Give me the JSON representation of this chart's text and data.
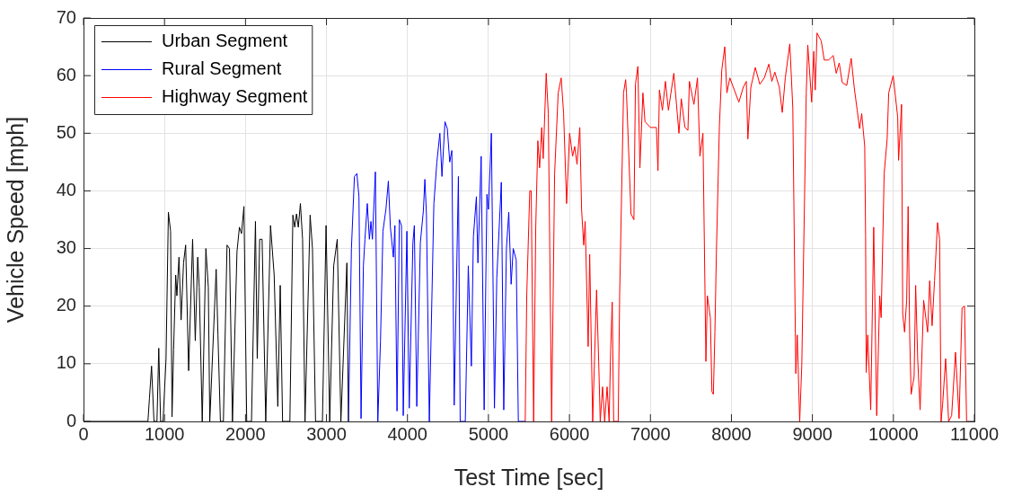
{
  "chart_data": {
    "type": "line",
    "xlabel": "Test Time [sec]",
    "ylabel": "Vehicle Speed [mph]",
    "xlim": [
      0,
      11000
    ],
    "xticks": [
      0,
      1000,
      2000,
      3000,
      4000,
      5000,
      6000,
      7000,
      8000,
      9000,
      10000,
      11000
    ],
    "ylim": [
      0,
      70
    ],
    "yticks": [
      0,
      10,
      20,
      30,
      40,
      50,
      60,
      70
    ],
    "grid": true,
    "legend": "top left",
    "marker": "none",
    "line_style": "solid",
    "series": [
      {
        "name": "Urban Segment",
        "color": "#000000",
        "x": [
          0,
          795,
          814,
          840,
          870,
          907,
          929,
          952,
          982,
          1019,
          1048,
          1075,
          1093,
          1112,
          1138,
          1153,
          1179,
          1205,
          1235,
          1261,
          1298,
          1347,
          1380,
          1410,
          1429,
          1466,
          1511,
          1541,
          1559,
          1638,
          1660,
          1690,
          1727,
          1772,
          1802,
          1839,
          1895,
          1925,
          1951,
          1981,
          2015,
          2074,
          2123,
          2145,
          2175,
          2205,
          2250,
          2309,
          2354,
          2399,
          2429,
          2458,
          2496,
          2548,
          2585,
          2608,
          2630,
          2652,
          2678,
          2705,
          2735,
          2798,
          2827,
          2865,
          2950,
          2995,
          3040,
          3089,
          3133,
          3178,
          3252,
          3271
        ],
        "values": [
          0,
          0,
          4,
          9.6,
          0,
          0,
          12.7,
          0,
          0,
          10.9,
          36.3,
          33,
          0.8,
          12.4,
          25.4,
          21.8,
          28.5,
          17.6,
          27.5,
          30.6,
          8.8,
          31.6,
          14,
          28.5,
          23.3,
          0,
          30,
          23.3,
          0,
          26.4,
          15,
          0,
          0,
          30.6,
          30,
          0,
          29.5,
          33.7,
          32.6,
          37.3,
          0,
          0,
          34.7,
          10.9,
          31.6,
          31.6,
          0,
          34,
          25.4,
          2.6,
          23.6,
          0,
          0,
          0,
          35.8,
          33.7,
          36,
          33.7,
          37.8,
          31.6,
          0,
          35.8,
          30,
          0,
          0,
          34,
          0,
          27,
          31.6,
          0,
          27.5,
          0
        ]
      },
      {
        "name": "Rural Segment",
        "color": "#0000ff",
        "x": [
          3271,
          3308,
          3345,
          3375,
          3401,
          3427,
          3456,
          3475,
          3504,
          3530,
          3549,
          3567,
          3604,
          3634,
          3667,
          3697,
          3734,
          3764,
          3789,
          3826,
          3845,
          3871,
          3900,
          3926,
          3948,
          3993,
          4022,
          4067,
          4085,
          4115,
          4159,
          4196,
          4215,
          4234,
          4270,
          4326,
          4363,
          4400,
          4426,
          4463,
          4492,
          4522,
          4548,
          4577,
          4629,
          4651,
          4714,
          4751,
          4789,
          4814,
          4851,
          4870,
          4910,
          4947,
          4981,
          5000,
          5036,
          5074,
          5103,
          5159,
          5189,
          5222,
          5251,
          5280,
          5306,
          5343,
          5369,
          5454
        ],
        "values": [
          0,
          30,
          42.5,
          43,
          39,
          0.5,
          27,
          31.6,
          37.8,
          31.6,
          34.7,
          31.6,
          43.3,
          0,
          14,
          33,
          36.8,
          41.7,
          33.7,
          28.5,
          34,
          1.8,
          35,
          34,
          1,
          33,
          2.3,
          31,
          34,
          2.6,
          31,
          36.5,
          42,
          36,
          0,
          37.8,
          45,
          50,
          42.5,
          52,
          50.8,
          45,
          47,
          2.8,
          42.5,
          0,
          0,
          27,
          9.6,
          32,
          39,
          27.5,
          46,
          2,
          39.4,
          36.8,
          50,
          2.3,
          24.9,
          41.5,
          2,
          30,
          36.3,
          23.8,
          30,
          28,
          0,
          0
        ]
      },
      {
        "name": "Highway Segment",
        "color": "#ff0000",
        "x": [
          5454,
          5473,
          5510,
          5528,
          5558,
          5584,
          5610,
          5632,
          5658,
          5676,
          5713,
          5739,
          5780,
          5817,
          5861,
          5898,
          5928,
          5965,
          6002,
          6039,
          6065,
          6094,
          6128,
          6150,
          6176,
          6194,
          6231,
          6250,
          6287,
          6335,
          6361,
          6380,
          6409,
          6435,
          6465,
          6490,
          6509,
          6528,
          6546,
          6602,
          6620,
          6668,
          6694,
          6704,
          6760,
          6796,
          6815,
          6845,
          6870,
          6907,
          6933,
          7000,
          7074,
          7093,
          7111,
          7148,
          7185,
          7222,
          7289,
          7352,
          7381,
          7426,
          7463,
          7481,
          7537,
          7581,
          7611,
          7648,
          7685,
          7703,
          7740,
          7759,
          7777,
          7796,
          7814,
          7851,
          7881,
          7918,
          7944,
          7981,
          8036,
          8092,
          8147,
          8184,
          8203,
          8240,
          8295,
          8351,
          8406,
          8462,
          8499,
          8536,
          8591,
          8628,
          8665,
          8721,
          8758,
          8795,
          8813,
          8843,
          8869,
          8924,
          8943,
          8991,
          9017,
          9035,
          9057,
          9109,
          9146,
          9202,
          9257,
          9294,
          9331,
          9368,
          9424,
          9479,
          9516,
          9553,
          9583,
          9609,
          9646,
          9657,
          9664,
          9683,
          9720,
          9757,
          9794,
          9831,
          9849,
          9886,
          9923,
          9942,
          9997,
          10053,
          10064,
          10101,
          10115,
          10138,
          10164,
          10182,
          10201,
          10219,
          10256,
          10275,
          10300,
          10330,
          10374,
          10423,
          10448,
          10478,
          10508,
          10545,
          10571,
          10589,
          10608,
          10645,
          10682,
          10719,
          10767,
          10811,
          10848,
          10878,
          10904
        ],
        "values": [
          0,
          22,
          40,
          40,
          0,
          33.7,
          48.7,
          44,
          51,
          45.6,
          60.4,
          53.4,
          0,
          43,
          57,
          59.6,
          53.4,
          37.8,
          50,
          46,
          47.7,
          44.6,
          51,
          36.8,
          30.6,
          34.7,
          13,
          29,
          0,
          22.8,
          10.4,
          0,
          6,
          0,
          6,
          0,
          12.4,
          20.7,
          0,
          0,
          22,
          57,
          59.3,
          57,
          36,
          35,
          58.5,
          61.6,
          44,
          57,
          52,
          51,
          51,
          43.5,
          57.5,
          54,
          59,
          54,
          60.4,
          50,
          56,
          51,
          50.5,
          59,
          55,
          59.6,
          46,
          50,
          10.4,
          21.8,
          18,
          5.2,
          4.7,
          15.5,
          29,
          51,
          61,
          65,
          57,
          59.6,
          57.5,
          55.4,
          58,
          59,
          49,
          58,
          61.4,
          58.5,
          59.6,
          62,
          59,
          60.6,
          58,
          53.6,
          59.6,
          65.5,
          54.4,
          8.3,
          15,
          0,
          9.8,
          57,
          65.3,
          55.4,
          64.2,
          57.5,
          67.4,
          66,
          62.7,
          62.7,
          63.5,
          60.4,
          62.2,
          58.8,
          58.3,
          63,
          58,
          54,
          50.8,
          53.4,
          47.7,
          32,
          8.5,
          15,
          2,
          33.7,
          1,
          21.8,
          18,
          43,
          49,
          57,
          60,
          52.8,
          45.3,
          55,
          18.7,
          15.5,
          21,
          37.3,
          15,
          4.7,
          7.8,
          23.6,
          10.9,
          2,
          21,
          15.5,
          24.4,
          16.6,
          24.4,
          34.5,
          31.6,
          0,
          3,
          10.9,
          0,
          1,
          12,
          0.5,
          19.7,
          20,
          0
        ]
      }
    ]
  }
}
